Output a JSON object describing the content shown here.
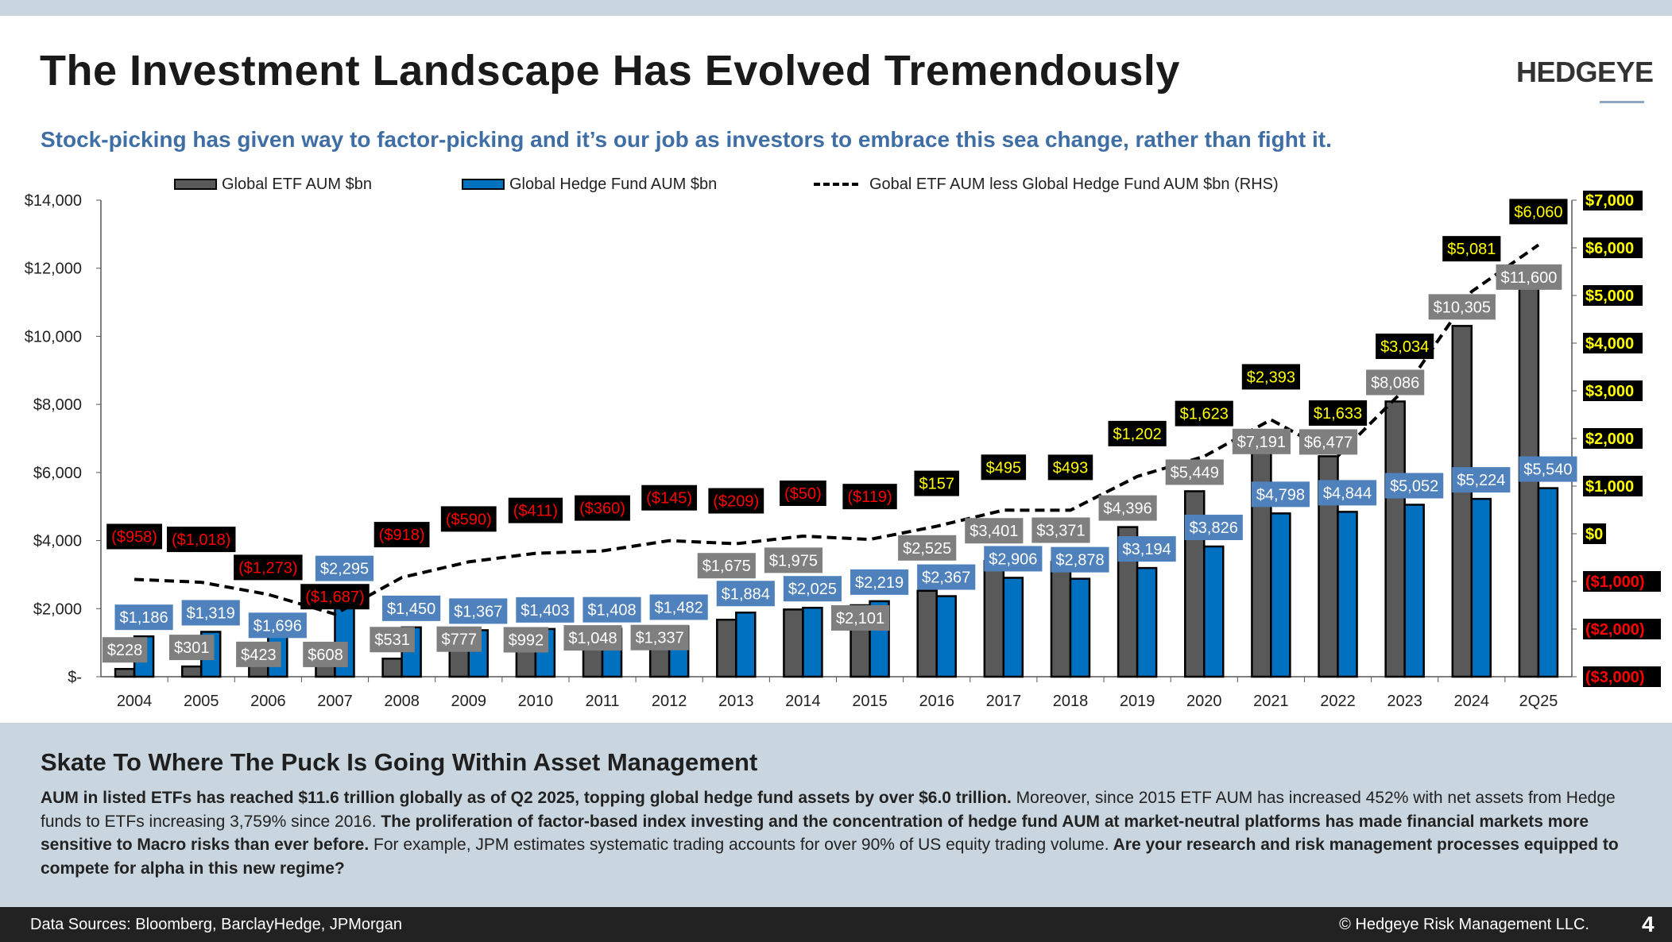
{
  "header": {
    "title": "The Investment Landscape Has Evolved Tremendously",
    "logo": "HEDGEYE",
    "subtitle": "Stock-picking has given way to factor-picking and it’s our job as investors to embrace this sea change, rather than fight it."
  },
  "chart_data": {
    "type": "bar",
    "title": "",
    "categories": [
      "2004",
      "2005",
      "2006",
      "2007",
      "2008",
      "2009",
      "2010",
      "2011",
      "2012",
      "2013",
      "2014",
      "2015",
      "2016",
      "2017",
      "2018",
      "2019",
      "2020",
      "2021",
      "2022",
      "2023",
      "2024",
      "2Q25"
    ],
    "series": [
      {
        "name": "Global ETF AUM $bn",
        "type": "bar",
        "axis": "left",
        "color": "#595959",
        "label_bg": "#7f7f7f",
        "values": [
          228,
          301,
          423,
          608,
          531,
          777,
          992,
          1048,
          1337,
          1675,
          1975,
          2101,
          2525,
          3401,
          3371,
          4396,
          5449,
          7191,
          6477,
          8086,
          10305,
          11600
        ],
        "labels": [
          "$228",
          "$301",
          "$423",
          "$608",
          "$531",
          "$777",
          "$992",
          "$1,048",
          "$1,337",
          "$1,675",
          "$1,975",
          "$2,101",
          "$2,525",
          "$3,401",
          "$3,371",
          "$4,396",
          "$5,449",
          "$7,191",
          "$6,477",
          "$8,086",
          "$10,305",
          "$11,600"
        ]
      },
      {
        "name": "Global Hedge Fund AUM $bn",
        "type": "bar",
        "axis": "left",
        "color": "#0070c0",
        "label_bg": "#4f81bd",
        "values": [
          1186,
          1319,
          1696,
          2295,
          1450,
          1367,
          1403,
          1408,
          1482,
          1884,
          2025,
          2219,
          2367,
          2906,
          2878,
          3194,
          3826,
          4798,
          4844,
          5052,
          5224,
          5540
        ],
        "labels": [
          "$1,186",
          "$1,319",
          "$1,696",
          "$2,295",
          "$1,450",
          "$1,367",
          "$1,403",
          "$1,408",
          "$1,482",
          "$1,884",
          "$2,025",
          "$2,219",
          "$2,367",
          "$2,906",
          "$2,878",
          "$3,194",
          "$3,826",
          "$4,798",
          "$4,844",
          "$5,052",
          "$5,224",
          "$5,540"
        ]
      },
      {
        "name": "Gobal ETF AUM less Global Hedge Fund AUM $bn (RHS)",
        "type": "line",
        "axis": "right",
        "color": "#000000",
        "dash": true,
        "values": [
          -958,
          -1018,
          -1273,
          -1687,
          -918,
          -590,
          -411,
          -360,
          -145,
          -209,
          -50,
          -119,
          157,
          495,
          493,
          1202,
          1623,
          2393,
          1633,
          3034,
          5081,
          6060
        ],
        "labels": [
          "($958)",
          "($1,018)",
          "($1,273)",
          "($1,687)",
          "($918)",
          "($590)",
          "($411)",
          "($360)",
          "($145)",
          "($209)",
          "($50)",
          "($119)",
          "$157",
          "$495",
          "$493",
          "$1,202",
          "$1,623",
          "$2,393",
          "$1,633",
          "$3,034",
          "$5,081",
          "$6,060"
        ]
      }
    ],
    "ylim": [
      0,
      14000
    ],
    "y2lim": [
      -3000,
      7000
    ],
    "yticks": [
      "$-",
      "$2,000",
      "$4,000",
      "$6,000",
      "$8,000",
      "$10,000",
      "$12,000",
      "$14,000"
    ],
    "y2ticks": [
      "($3,000)",
      "($2,000)",
      "($1,000)",
      "$0",
      "$1,000",
      "$2,000",
      "$3,000",
      "$4,000",
      "$5,000",
      "$6,000",
      "$7,000"
    ],
    "legend_position": "top",
    "grid": false,
    "negative_label_color": "#ff0000",
    "positive_label_color": "#ffff00"
  },
  "panel": {
    "heading": "Skate To Where The Puck Is Going Within Asset Management",
    "segments": [
      {
        "bold": true,
        "text": "AUM in listed ETFs has reached $11.6 trillion globally as of Q2 2025, topping global hedge fund assets by over $6.0 trillion."
      },
      {
        "bold": false,
        "text": " Moreover, since 2015 ETF AUM has increased 452% with net assets from Hedge funds to ETFs increasing 3,759% since 2016."
      },
      {
        "bold": true,
        "text": " The proliferation of factor-based index investing and the concentration of hedge fund AUM at market-neutral platforms has made financial markets more sensitive to Macro risks than ever before."
      },
      {
        "bold": false,
        "text": " For example, JPM estimates systematic trading accounts for over 90% of US equity trading volume."
      },
      {
        "bold": true,
        "text": " Are your research and risk management processes equipped to compete for alpha in this new regime?"
      }
    ]
  },
  "footer": {
    "sources": "Data Sources: Bloomberg, BarclayHedge, JPMorgan",
    "copyright": "© Hedgeye Risk Management LLC.",
    "page": "4"
  }
}
